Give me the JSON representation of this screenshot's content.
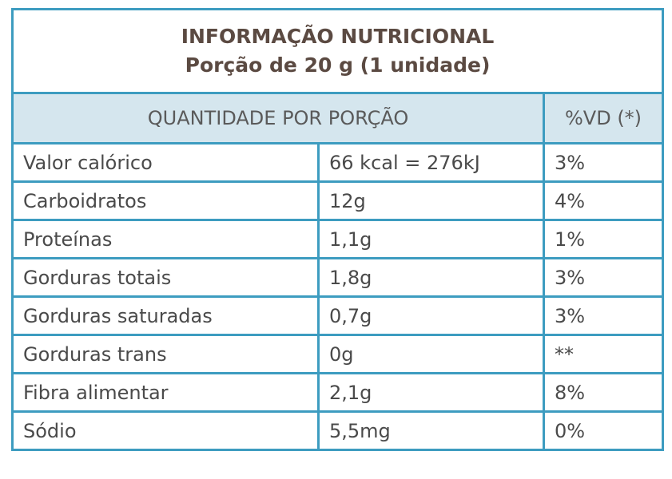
{
  "table": {
    "title": [
      "INFORMAÇÃO NUTRICIONAL",
      "Porção de 20 g (1 unidade)"
    ],
    "header": [
      "QUANTIDADE POR PORÇÃO",
      "%VD (*)"
    ],
    "rows": [
      [
        "Valor calórico",
        "66 kcal = 276kJ",
        "3%"
      ],
      [
        "Carboidratos",
        "12g",
        "4%"
      ],
      [
        "Proteínas",
        "1,1g",
        "1%"
      ],
      [
        "Gorduras totais",
        "1,8g",
        "3%"
      ],
      [
        "Gorduras saturadas",
        "0,7g",
        "3%"
      ],
      [
        "Gorduras trans",
        "0g",
        "**"
      ],
      [
        "Fibra alimentar",
        "2,1g",
        "8%"
      ],
      [
        "Sódio",
        "5,5mg",
        "0%"
      ]
    ]
  }
}
